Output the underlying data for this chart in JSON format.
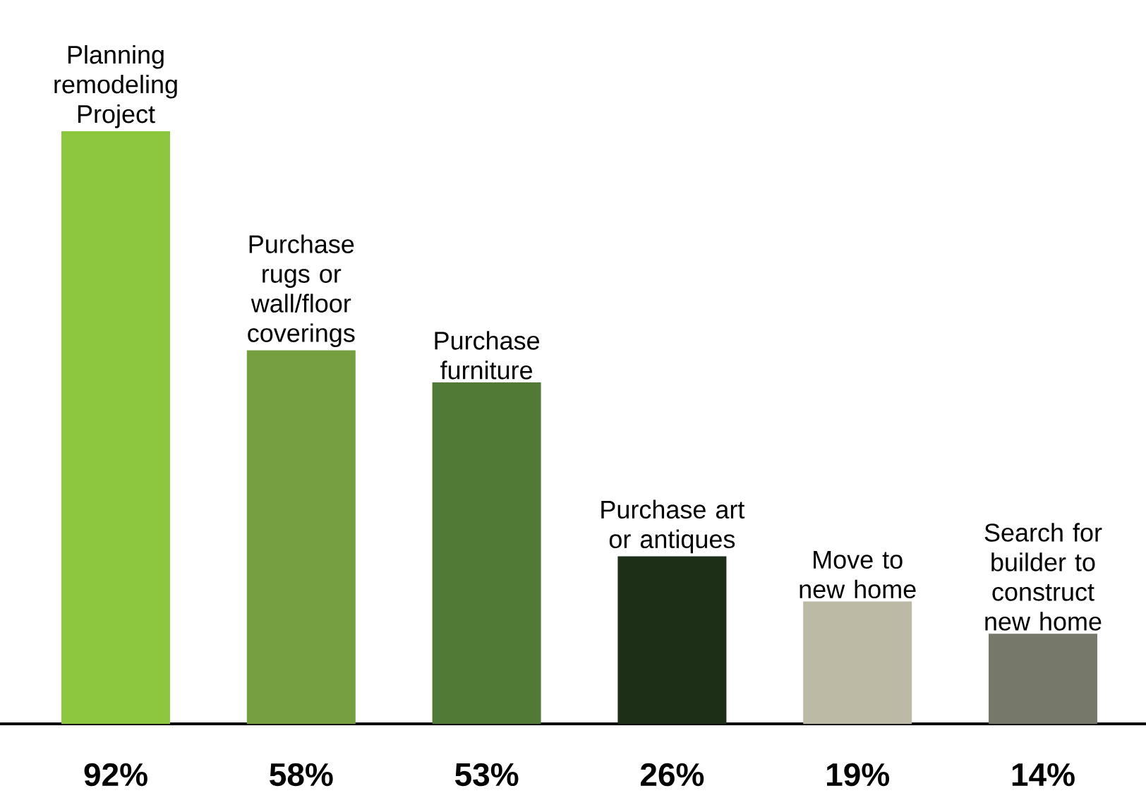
{
  "chart_data": {
    "type": "bar",
    "categories": [
      "Planning remodeling Project",
      "Purchase rugs or wall/floor coverings",
      "Purchase furniture",
      "Purchase art or antiques",
      "Move to new home",
      "Search for builder to construct new home"
    ],
    "values": [
      92,
      58,
      53,
      26,
      19,
      14
    ],
    "value_labels": [
      "92%",
      "58%",
      "53%",
      "26%",
      "19%",
      "14%"
    ],
    "colors": [
      "#8dc63f",
      "#76a040",
      "#507a36",
      "#1e2f18",
      "#bcb9a5",
      "#76786a"
    ]
  }
}
